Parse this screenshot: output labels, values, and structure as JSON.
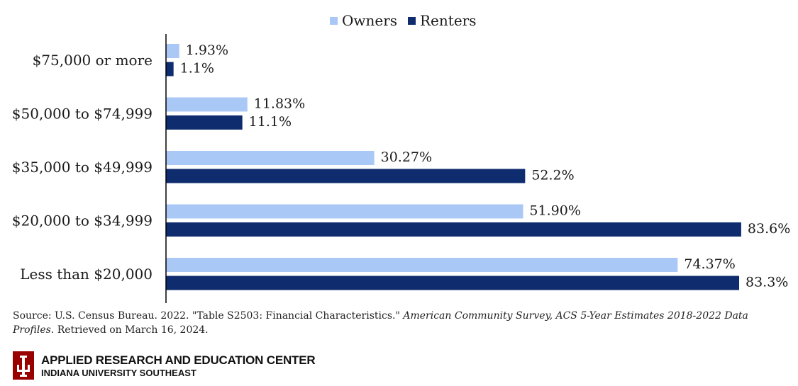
{
  "chart_data": {
    "type": "bar",
    "orientation": "horizontal",
    "categories": [
      "$75,000 or more",
      "$50,000 to $74,999",
      "$35,000 to $49,999",
      "$20,000 to $34,999",
      "Less than $20,000"
    ],
    "series": [
      {
        "name": "Owners",
        "color": "#a9c8f5",
        "values": [
          1.93,
          11.83,
          30.27,
          51.9,
          74.37
        ],
        "labels": [
          "1.93%",
          "11.83%",
          "30.27%",
          "51.90%",
          "74.37%"
        ]
      },
      {
        "name": "Renters",
        "color": "#0e2c6e",
        "values": [
          1.1,
          11.1,
          52.2,
          83.6,
          83.3
        ],
        "labels": [
          "1.1%",
          "11.1%",
          "52.2%",
          "83.6%",
          "83.3%"
        ]
      }
    ],
    "xlim": [
      0,
      100
    ],
    "legend_position": "top-center",
    "grid": false,
    "title": "",
    "xlabel": "",
    "ylabel": ""
  },
  "source": {
    "prefix": "Source: U.S. Census Bureau. 2022. \"Table S2503: Financial Characteristics.\" ",
    "italic": "American Community Survey, ACS 5-Year Estimates 2018-2022 Data Profiles",
    "suffix": ". Retrieved on March 16, 2024."
  },
  "brand": {
    "title": "APPLIED RESEARCH AND EDUCATION CENTER",
    "subtitle": "INDIANA UNIVERSITY SOUTHEAST",
    "logo_color": "#990000"
  }
}
